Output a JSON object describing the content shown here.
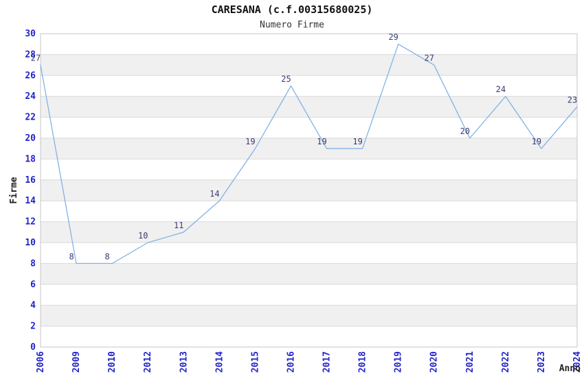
{
  "chart_data": {
    "type": "line",
    "title": "CARESANA (c.f.00315680025)",
    "subtitle": "Numero Firme",
    "xlabel": "Anno",
    "ylabel": "Firme",
    "categories": [
      "2006",
      "2009",
      "2010",
      "2012",
      "2013",
      "2014",
      "2015",
      "2016",
      "2017",
      "2018",
      "2019",
      "2020",
      "2021",
      "2022",
      "2023",
      "2024"
    ],
    "series": [
      {
        "name": "Numero Firme",
        "values": [
          27,
          8,
          8,
          10,
          11,
          14,
          19,
          25,
          19,
          19,
          29,
          27,
          20,
          24,
          19,
          23
        ]
      }
    ],
    "ylim": [
      0,
      30
    ],
    "ytick_step": 2,
    "yticks": [
      0,
      2,
      4,
      6,
      8,
      10,
      12,
      14,
      16,
      18,
      20,
      22,
      24,
      26,
      28,
      30
    ],
    "grid": true,
    "legend_position": "none",
    "band_pattern": "alternating 2-unit horizontal stripes",
    "colors": {
      "line": "#82b2e4",
      "tick_label": "#2323cb",
      "data_label": "#3b3b73",
      "band": "#f0f0f0",
      "gridline": "#d9d9d9",
      "frame": "#c6c6c6",
      "title": "#111111",
      "subtitle": "#333333",
      "axis_title": "#222222",
      "background": "#ffffff"
    }
  }
}
